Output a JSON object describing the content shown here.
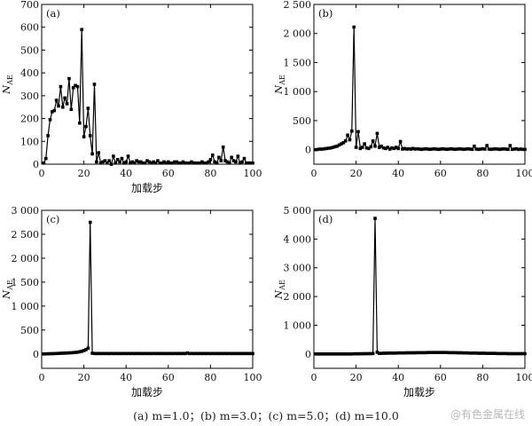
{
  "chart_data": [
    {
      "type": "line",
      "panel_label": "(a)",
      "xlabel": "加载步",
      "ylabel": "N",
      "ylabel_sub": "AE",
      "xlim": [
        0,
        100
      ],
      "ylim": [
        0,
        700
      ],
      "xticks": [
        0,
        20,
        40,
        60,
        80,
        100
      ],
      "yticks": [
        0,
        100,
        200,
        300,
        400,
        500,
        600,
        700
      ],
      "yticks_display": [
        "0",
        "100",
        "200",
        "300",
        "400",
        "500",
        "600",
        "700"
      ],
      "series": [
        {
          "x": [
            1,
            2,
            3,
            4,
            5,
            6,
            7,
            8,
            9,
            10,
            11,
            12,
            13,
            14,
            15,
            16,
            17,
            18,
            19,
            20,
            21,
            22,
            23,
            24,
            25,
            26,
            27,
            28,
            29,
            30,
            31,
            32,
            33,
            34,
            35,
            36,
            37,
            38,
            39,
            40,
            41,
            42,
            43,
            44,
            45,
            46,
            47,
            48,
            49,
            50,
            51,
            52,
            53,
            54,
            55,
            56,
            57,
            58,
            59,
            60,
            61,
            62,
            63,
            64,
            65,
            66,
            67,
            68,
            69,
            70,
            71,
            72,
            73,
            74,
            75,
            76,
            77,
            78,
            79,
            80,
            81,
            82,
            83,
            84,
            85,
            86,
            87,
            88,
            89,
            90,
            91,
            92,
            93,
            94,
            95,
            96,
            97,
            98,
            99,
            100
          ],
          "y": [
            5,
            25,
            125,
            195,
            230,
            235,
            280,
            255,
            340,
            250,
            290,
            265,
            375,
            240,
            335,
            345,
            340,
            180,
            590,
            120,
            165,
            245,
            125,
            45,
            350,
            10,
            50,
            5,
            10,
            15,
            5,
            15,
            0,
            35,
            5,
            20,
            10,
            25,
            5,
            10,
            35,
            5,
            10,
            5,
            15,
            10,
            10,
            5,
            5,
            15,
            10,
            5,
            10,
            5,
            15,
            5,
            5,
            10,
            5,
            10,
            5,
            5,
            10,
            10,
            5,
            5,
            10,
            5,
            5,
            5,
            10,
            5,
            5,
            5,
            5,
            10,
            5,
            5,
            10,
            20,
            40,
            10,
            5,
            30,
            15,
            75,
            15,
            10,
            5,
            30,
            15,
            10,
            35,
            5,
            10,
            25,
            5,
            5,
            5,
            5
          ]
        }
      ]
    },
    {
      "type": "line",
      "panel_label": "(b)",
      "xlabel": "",
      "ylabel": "N",
      "ylabel_sub": "AE",
      "xlim": [
        0,
        100
      ],
      "ylim": [
        -250,
        2500
      ],
      "xticks": [
        0,
        20,
        40,
        60,
        80,
        100
      ],
      "yticks": [
        0,
        500,
        1000,
        1500,
        2000,
        2500
      ],
      "yticks_display": [
        "0",
        "500",
        "1 000",
        "1 500",
        "2 000",
        "2 500"
      ],
      "series": [
        {
          "x": [
            1,
            2,
            3,
            4,
            5,
            6,
            7,
            8,
            9,
            10,
            11,
            12,
            13,
            14,
            15,
            16,
            17,
            18,
            19,
            20,
            21,
            22,
            23,
            24,
            25,
            26,
            27,
            28,
            29,
            30,
            31,
            32,
            33,
            34,
            35,
            36,
            37,
            38,
            39,
            40,
            41,
            42,
            43,
            44,
            45,
            46,
            47,
            48,
            49,
            50,
            51,
            52,
            53,
            54,
            55,
            56,
            57,
            58,
            59,
            60,
            61,
            62,
            63,
            64,
            65,
            66,
            67,
            68,
            69,
            70,
            71,
            72,
            73,
            74,
            75,
            76,
            77,
            78,
            79,
            80,
            81,
            82,
            83,
            84,
            85,
            86,
            87,
            88,
            89,
            90,
            91,
            92,
            93,
            94,
            95,
            96,
            97,
            98,
            99,
            100
          ],
          "y": [
            0,
            5,
            10,
            10,
            15,
            20,
            25,
            30,
            40,
            50,
            60,
            80,
            100,
            120,
            150,
            250,
            170,
            320,
            2110,
            40,
            310,
            20,
            40,
            100,
            30,
            20,
            50,
            150,
            60,
            280,
            40,
            60,
            30,
            20,
            40,
            10,
            30,
            20,
            40,
            20,
            140,
            10,
            20,
            10,
            15,
            10,
            20,
            10,
            15,
            10,
            5,
            10,
            15,
            10,
            5,
            10,
            15,
            10,
            5,
            10,
            15,
            10,
            5,
            10,
            15,
            10,
            5,
            10,
            15,
            10,
            5,
            10,
            15,
            10,
            5,
            60,
            10,
            5,
            10,
            15,
            10,
            70,
            10,
            5,
            10,
            15,
            10,
            5,
            10,
            15,
            10,
            5,
            70,
            5,
            10,
            15,
            5,
            10,
            5,
            5
          ]
        }
      ]
    },
    {
      "type": "line",
      "panel_label": "(c)",
      "xlabel": "加载步",
      "ylabel": "N",
      "ylabel_sub": "AE",
      "xlim": [
        0,
        100
      ],
      "ylim": [
        -300,
        3000
      ],
      "xticks": [
        0,
        20,
        40,
        60,
        80,
        100
      ],
      "yticks": [
        0,
        500,
        1000,
        1500,
        2000,
        2500,
        3000
      ],
      "yticks_display": [
        "0",
        "500",
        "1 000",
        "1 500",
        "2 000",
        "2 500",
        "3 000"
      ],
      "series": [
        {
          "x": [
            1,
            2,
            3,
            4,
            5,
            6,
            7,
            8,
            9,
            10,
            11,
            12,
            13,
            14,
            15,
            16,
            17,
            18,
            19,
            20,
            21,
            22,
            23,
            24,
            25,
            26,
            27,
            28,
            29,
            30,
            31,
            32,
            33,
            34,
            35,
            36,
            37,
            38,
            39,
            40,
            41,
            42,
            43,
            44,
            45,
            46,
            47,
            48,
            49,
            50,
            51,
            52,
            53,
            54,
            55,
            56,
            57,
            58,
            59,
            60,
            61,
            62,
            63,
            64,
            65,
            66,
            67,
            68,
            69,
            70,
            71,
            72,
            73,
            74,
            75,
            76,
            77,
            78,
            79,
            80,
            81,
            82,
            83,
            84,
            85,
            86,
            87,
            88,
            89,
            90,
            91,
            92,
            93,
            94,
            95,
            96,
            97,
            98,
            99,
            100
          ],
          "y": [
            0,
            2,
            3,
            5,
            6,
            8,
            10,
            12,
            14,
            16,
            18,
            20,
            22,
            25,
            28,
            32,
            38,
            45,
            55,
            70,
            90,
            120,
            2750,
            15,
            10,
            8,
            10,
            8,
            10,
            8,
            10,
            8,
            10,
            8,
            10,
            8,
            10,
            8,
            10,
            8,
            10,
            8,
            10,
            8,
            10,
            8,
            10,
            8,
            10,
            8,
            10,
            8,
            10,
            8,
            10,
            8,
            10,
            8,
            10,
            8,
            10,
            8,
            10,
            8,
            10,
            8,
            10,
            8,
            20,
            8,
            10,
            8,
            10,
            8,
            10,
            8,
            10,
            8,
            10,
            8,
            10,
            8,
            10,
            8,
            10,
            8,
            10,
            8,
            10,
            8,
            10,
            8,
            10,
            8,
            10,
            8,
            10,
            8,
            10,
            8
          ]
        }
      ]
    },
    {
      "type": "line",
      "panel_label": "(d)",
      "xlabel": "加载步",
      "ylabel": "N",
      "ylabel_sub": "AE",
      "xlim": [
        0,
        100
      ],
      "ylim": [
        -500,
        5000
      ],
      "xticks": [
        0,
        20,
        40,
        60,
        80,
        100
      ],
      "yticks": [
        0,
        1000,
        2000,
        3000,
        4000,
        5000
      ],
      "yticks_display": [
        "0",
        "1 000",
        "2 000",
        "3 000",
        "4 000",
        "5 000"
      ],
      "series": [
        {
          "x": [
            1,
            2,
            3,
            4,
            5,
            6,
            7,
            8,
            9,
            10,
            11,
            12,
            13,
            14,
            15,
            16,
            17,
            18,
            19,
            20,
            21,
            22,
            23,
            24,
            25,
            26,
            27,
            28,
            29,
            30,
            31,
            32,
            33,
            34,
            35,
            36,
            37,
            38,
            39,
            40,
            41,
            42,
            43,
            44,
            45,
            46,
            47,
            48,
            49,
            50,
            51,
            52,
            53,
            54,
            55,
            56,
            57,
            58,
            59,
            60,
            61,
            62,
            63,
            64,
            65,
            66,
            67,
            68,
            69,
            70,
            71,
            72,
            73,
            74,
            75,
            76,
            77,
            78,
            79,
            80,
            81,
            82,
            83,
            84,
            85,
            86,
            87,
            88,
            89,
            90,
            91,
            92,
            93,
            94,
            95,
            96,
            97,
            98,
            99,
            100
          ],
          "y": [
            0,
            0,
            0,
            0,
            0,
            0,
            0,
            0,
            0,
            0,
            0,
            0,
            0,
            0,
            0,
            0,
            0,
            0,
            5,
            5,
            5,
            5,
            8,
            8,
            10,
            10,
            12,
            15,
            4720,
            60,
            20,
            20,
            25,
            25,
            30,
            30,
            30,
            30,
            30,
            35,
            35,
            35,
            35,
            40,
            40,
            40,
            40,
            40,
            45,
            45,
            45,
            45,
            45,
            50,
            50,
            50,
            50,
            50,
            50,
            50,
            50,
            50,
            50,
            45,
            45,
            45,
            45,
            40,
            40,
            40,
            35,
            35,
            35,
            30,
            30,
            30,
            30,
            25,
            25,
            25,
            25,
            20,
            20,
            20,
            20,
            20,
            15,
            15,
            15,
            15,
            15,
            10,
            10,
            10,
            10,
            10,
            10,
            10,
            10,
            10
          ]
        }
      ]
    }
  ],
  "caption": "(a) m=1.0；(b) m=3.0；(c) m=5.0；(d) m=10.0",
  "watermark": "@有色金属在线"
}
